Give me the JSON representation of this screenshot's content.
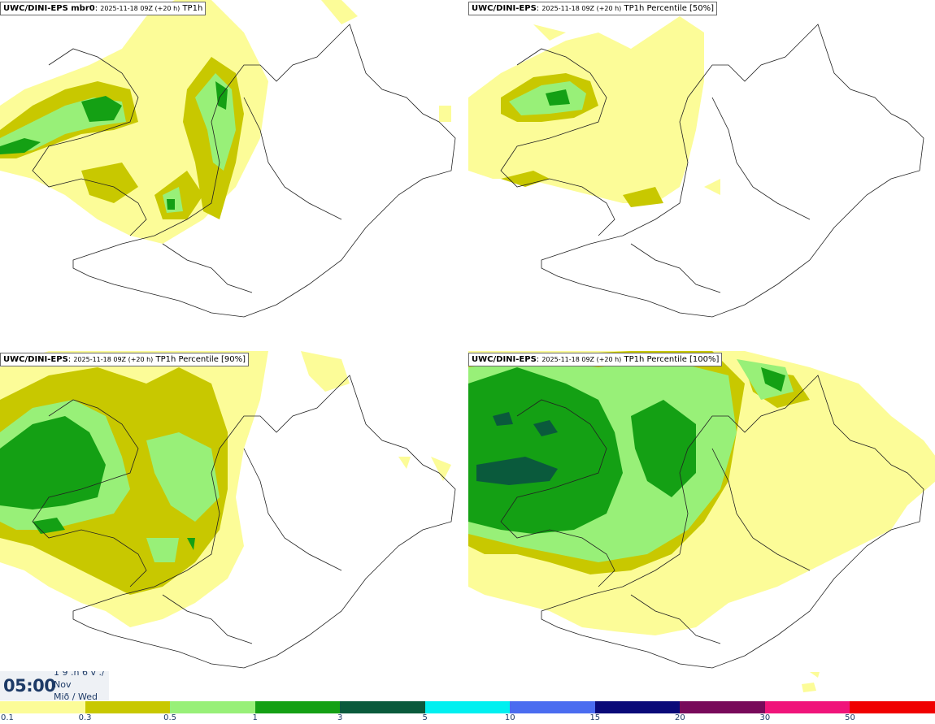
{
  "panels": [
    {
      "model": "UWC/DINI-EPS mbr0",
      "run": "2025-11-18 09Z (+20 h)",
      "field": "TP1h"
    },
    {
      "model": "UWC/DINI-EPS",
      "run": "2025-11-18 09Z (+20 h)",
      "field": "TP1h Percentile [50%]"
    },
    {
      "model": "UWC/DINI-EPS",
      "run": "2025-11-18 09Z (+20 h)",
      "field": "TP1h Percentile [90%]"
    },
    {
      "model": "UWC/DINI-EPS",
      "run": "2025-11-18 09Z (+20 h)",
      "field": "TP1h Percentile [100%]"
    }
  ],
  "valid_time": {
    "hour_minute": "05:00",
    "date_fragment": "1 9 .n 6 v ./",
    "month": "Nov",
    "weekday": "Mið / Wed"
  },
  "legend": {
    "labels": [
      "0.1",
      "0.3",
      "0.5",
      "1",
      "3",
      "5",
      "10",
      "15",
      "20",
      "30",
      "50"
    ],
    "colors": [
      "#fcfc98",
      "#c8c800",
      "#98f078",
      "#14a014",
      "#0a5a3c",
      "#00f0f0",
      "#4a6cf0",
      "#0a0a78",
      "#780a5a",
      "#f0147a",
      "#f00000"
    ]
  }
}
